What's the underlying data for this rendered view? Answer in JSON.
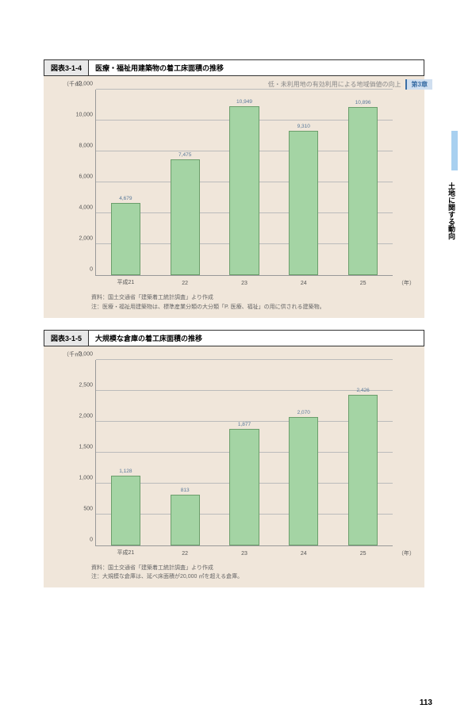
{
  "header": {
    "subtitle": "低・未利用地の有効利用による地域価値の向上",
    "chapter": "第3章"
  },
  "side_tab": "土地に関する動向",
  "charts": [
    {
      "num": "図表3-1-4",
      "title": "医療・福祉用建築物の着工床面積の推移",
      "y_unit": "（千㎡）",
      "x_unit": "（年）",
      "ymax": 12000,
      "ystep": 2000,
      "categories": [
        "平成21",
        "22",
        "23",
        "24",
        "25"
      ],
      "values": [
        4679,
        7475,
        10949,
        9310,
        10896
      ],
      "bar_color": "#a4d4a4",
      "notes": [
        "資料：国土交通省「建築着工統計調査」より作成",
        "注：医療・福祉用建築物は、標準産業分類の大分類「P. 医療、福祉」の用に供される建築物。"
      ]
    },
    {
      "num": "図表3-1-5",
      "title": "大規模な倉庫の着工床面積の推移",
      "y_unit": "（千㎡）",
      "x_unit": "（年）",
      "ymax": 3000,
      "ystep": 500,
      "categories": [
        "平成21",
        "22",
        "23",
        "24",
        "25"
      ],
      "values": [
        1128,
        813,
        1877,
        2070,
        2426
      ],
      "bar_color": "#a4d4a4",
      "notes": [
        "資料：国土交通省「建築着工統計調査」より作成",
        "注：大規模な倉庫は、延べ床面積が20,000 ㎡を超える倉庫。"
      ]
    }
  ],
  "page_num": "113"
}
